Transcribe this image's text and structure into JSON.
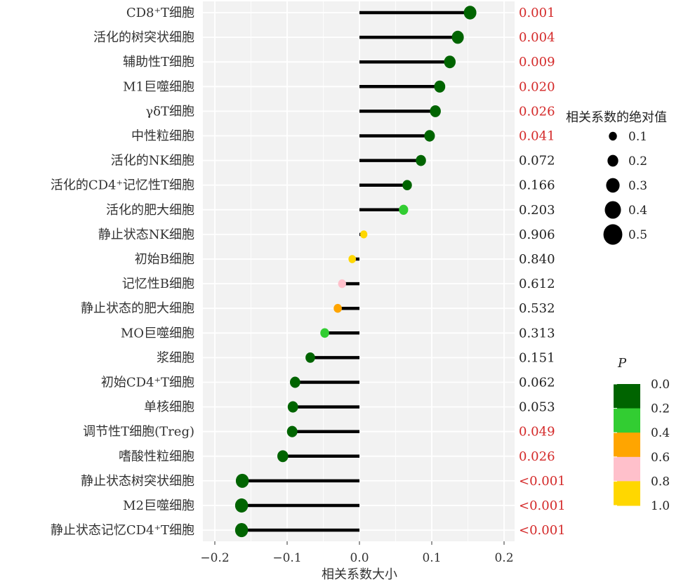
{
  "chart_data": {
    "type": "lollipop",
    "xlabel": "相关系数大小",
    "xlim": [
      -0.22,
      0.22
    ],
    "xticks": [
      {
        "value": -0.2,
        "label": "−0.2"
      },
      {
        "value": -0.1,
        "label": "−0.1"
      },
      {
        "value": 0.0,
        "label": "0.0"
      },
      {
        "value": 0.1,
        "label": "0.1"
      },
      {
        "value": 0.2,
        "label": "0.2"
      }
    ],
    "grid": true,
    "rows": [
      {
        "label": "CD8⁺T细胞",
        "r": 0.153,
        "p": 0.001,
        "p_label": "0.001",
        "significant": true
      },
      {
        "label": "活化的树突状细胞",
        "r": 0.136,
        "p": 0.004,
        "p_label": "0.004",
        "significant": true
      },
      {
        "label": "辅助性T细胞",
        "r": 0.125,
        "p": 0.009,
        "p_label": "0.009",
        "significant": true
      },
      {
        "label": "M1巨噬细胞",
        "r": 0.111,
        "p": 0.02,
        "p_label": "0.020",
        "significant": true
      },
      {
        "label": "γδT细胞",
        "r": 0.105,
        "p": 0.026,
        "p_label": "0.026",
        "significant": true
      },
      {
        "label": "中性粒细胞",
        "r": 0.097,
        "p": 0.041,
        "p_label": "0.041",
        "significant": true
      },
      {
        "label": "活化的NK细胞",
        "r": 0.085,
        "p": 0.072,
        "p_label": "0.072",
        "significant": false
      },
      {
        "label": "活化的CD4⁺记忆性T细胞",
        "r": 0.066,
        "p": 0.166,
        "p_label": "0.166",
        "significant": false
      },
      {
        "label": "活化的肥大细胞",
        "r": 0.061,
        "p": 0.203,
        "p_label": "0.203",
        "significant": false
      },
      {
        "label": "静止状态NK细胞",
        "r": 0.006,
        "p": 0.906,
        "p_label": "0.906",
        "significant": false
      },
      {
        "label": "初始B细胞",
        "r": -0.01,
        "p": 0.84,
        "p_label": "0.840",
        "significant": false
      },
      {
        "label": "记忆性B细胞",
        "r": -0.024,
        "p": 0.612,
        "p_label": "0.612",
        "significant": false
      },
      {
        "label": "静止状态的肥大细胞",
        "r": -0.03,
        "p": 0.532,
        "p_label": "0.532",
        "significant": false
      },
      {
        "label": "MO巨噬细胞",
        "r": -0.048,
        "p": 0.313,
        "p_label": "0.313",
        "significant": false
      },
      {
        "label": "浆细胞",
        "r": -0.068,
        "p": 0.151,
        "p_label": "0.151",
        "significant": false
      },
      {
        "label": "初始CD4⁺T细胞",
        "r": -0.089,
        "p": 0.062,
        "p_label": "0.062",
        "significant": false
      },
      {
        "label": "单核细胞",
        "r": -0.092,
        "p": 0.053,
        "p_label": "0.053",
        "significant": false
      },
      {
        "label": "调节性T细胞(Treg)",
        "r": -0.093,
        "p": 0.049,
        "p_label": "0.049",
        "significant": true
      },
      {
        "label": "嗜酸性粒细胞",
        "r": -0.106,
        "p": 0.026,
        "p_label": "0.026",
        "significant": true
      },
      {
        "label": "静止状态树突状细胞",
        "r": -0.162,
        "p": 0.0009,
        "p_label": "<0.001",
        "significant": true
      },
      {
        "label": "M2巨噬细胞",
        "r": -0.163,
        "p": 0.0009,
        "p_label": "<0.001",
        "significant": true
      },
      {
        "label": "静止状态记忆CD4⁺T细胞",
        "r": -0.163,
        "p": 0.0009,
        "p_label": "<0.001",
        "significant": true
      }
    ],
    "size_legend": {
      "title": "相关系数的绝对值",
      "items": [
        {
          "value": 0.1,
          "label": "0.1"
        },
        {
          "value": 0.2,
          "label": "0.2"
        },
        {
          "value": 0.3,
          "label": "0.3"
        },
        {
          "value": 0.4,
          "label": "0.4"
        },
        {
          "value": 0.5,
          "label": "0.5"
        }
      ]
    },
    "color_legend": {
      "title": "P",
      "bins": [
        {
          "color": "#006400"
        },
        {
          "color": "#32CD32"
        },
        {
          "color": "#FFA500"
        },
        {
          "color": "#FFC0CB"
        },
        {
          "color": "#FFD700"
        }
      ],
      "labels": [
        "0.0",
        "0.2",
        "0.4",
        "0.6",
        "0.8",
        "1.0"
      ]
    },
    "colors": {
      "panel_bg": "#F2F2F2",
      "grid": "#FFFFFF",
      "stem": "#000000",
      "significant_text": "#D42A2A",
      "normal_text": "#222222"
    }
  }
}
